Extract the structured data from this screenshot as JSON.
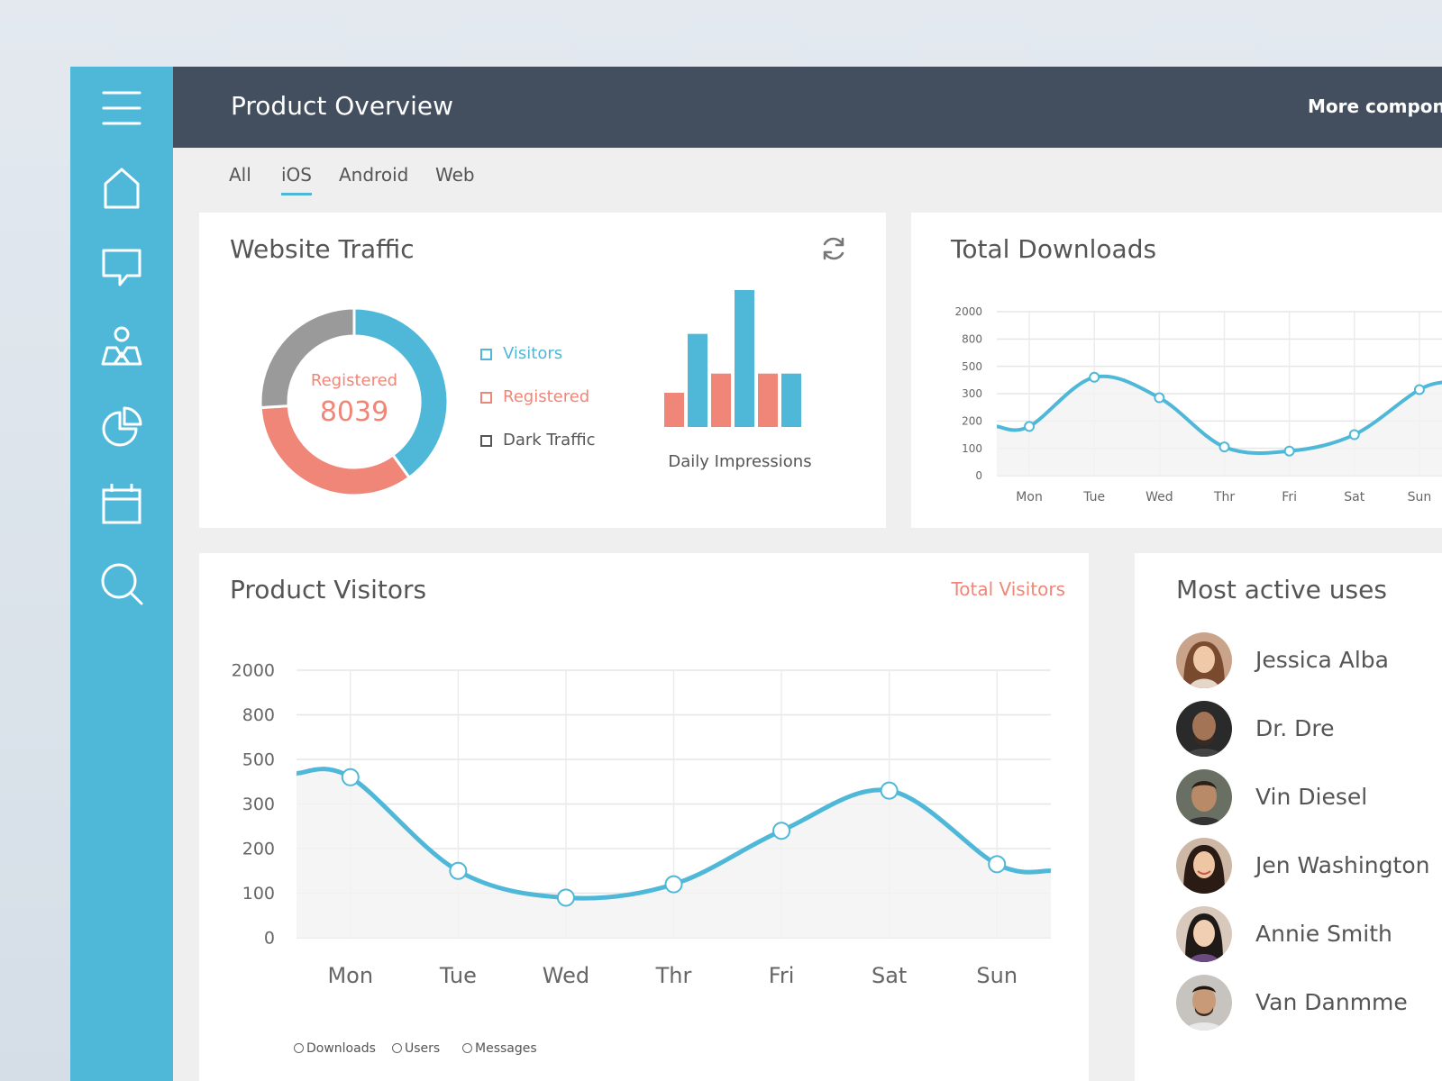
{
  "header": {
    "title": "Product Overview",
    "more_label": "More componen"
  },
  "tabs": [
    {
      "label": "All",
      "active": false
    },
    {
      "label": "iOS",
      "active": true
    },
    {
      "label": "Android",
      "active": false
    },
    {
      "label": "Web",
      "active": false
    }
  ],
  "sidebar": {
    "items": [
      {
        "icon": "menu-icon"
      },
      {
        "icon": "home-icon"
      },
      {
        "icon": "chat-icon"
      },
      {
        "icon": "users-icon"
      },
      {
        "icon": "pie-chart-icon"
      },
      {
        "icon": "calendar-icon"
      },
      {
        "icon": "search-icon"
      }
    ]
  },
  "website_traffic": {
    "title": "Website Traffic",
    "donut_label": "Registered",
    "donut_value": "8039",
    "legend": [
      {
        "label": "Visitors",
        "color": "#4fb8d9"
      },
      {
        "label": "Registered",
        "color": "#f08677"
      },
      {
        "label": "Dark Traffic",
        "color": "#555555"
      }
    ],
    "bars_caption": "Daily Impressions"
  },
  "total_downloads": {
    "title": "Total Downloads"
  },
  "product_visitors": {
    "title": "Product Visitors",
    "total_link": "Total Visitors",
    "legend": [
      "Downloads",
      "Users",
      "Messages"
    ]
  },
  "active_users": {
    "title": "Most active uses",
    "users": [
      {
        "name": "Jessica Alba"
      },
      {
        "name": "Dr. Dre"
      },
      {
        "name": "Vin Diesel"
      },
      {
        "name": "Jen Washington"
      },
      {
        "name": "Annie Smith"
      },
      {
        "name": "Van Danmme"
      }
    ]
  },
  "colors": {
    "accent": "#4fb8d9",
    "coral": "#f08677",
    "grey": "#9a9a9a",
    "header": "#434f5e"
  },
  "chart_data": [
    {
      "type": "pie",
      "subtype": "donut",
      "categories": [
        "Visitors",
        "Registered",
        "Dark Traffic"
      ],
      "values": [
        0.4,
        0.34,
        0.26
      ],
      "colors": [
        "#4fb8d9",
        "#f08677",
        "#9a9a9a"
      ]
    },
    {
      "type": "bar",
      "title": "Daily Impressions",
      "values": [
        25,
        68,
        39,
        100,
        39,
        39
      ],
      "colors": [
        "#f08677",
        "#4fb8d9",
        "#f08677",
        "#4fb8d9",
        "#f08677",
        "#4fb8d9"
      ],
      "ylim": [
        0,
        100
      ]
    },
    {
      "type": "line",
      "title": "Total Downloads",
      "categories": [
        "Mon",
        "Tue",
        "Wed",
        "Thr",
        "Fri",
        "Sat",
        "Sun"
      ],
      "y_ticks": [
        "2000",
        "800",
        "500",
        "300",
        "200",
        "100",
        "0"
      ],
      "series": [
        {
          "values": [
            600,
            1200,
            950,
            350,
            300,
            500,
            1050
          ]
        }
      ]
    },
    {
      "type": "line",
      "title": "Product Visitors",
      "categories": [
        "Mon",
        "Tue",
        "Wed",
        "Thr",
        "Fri",
        "Sat",
        "Sun"
      ],
      "y_ticks": [
        "2000",
        "800",
        "500",
        "300",
        "200",
        "100",
        "0"
      ],
      "series": [
        {
          "values": [
            1200,
            500,
            300,
            400,
            800,
            1100,
            550
          ]
        }
      ],
      "grid": true
    }
  ]
}
